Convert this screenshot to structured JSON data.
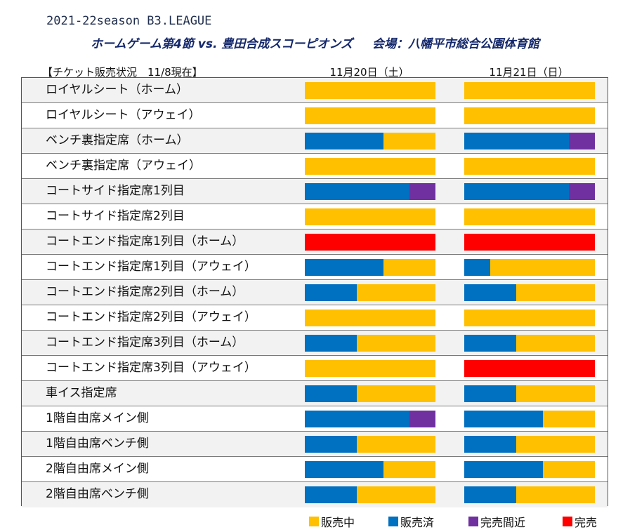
{
  "header": {
    "title": "2021-22season B3.LEAGUE",
    "subtitle_game": "ホームゲーム第4節 vs. 豊田合成スコーピオンズ",
    "subtitle_venue": "会場：八幡平市総合公園体育館",
    "status": "【チケット販売状況　11/8現在】"
  },
  "chart_data": {
    "type": "bar",
    "orientation": "horizontal",
    "stacked": true,
    "normalized": true,
    "dates": [
      "11月20日（土）",
      "11月21日（日）"
    ],
    "legend_position": "bottom",
    "legend": [
      {
        "key": "available",
        "label": "販売中",
        "color": "#ffc000"
      },
      {
        "key": "sold",
        "label": "販売済",
        "color": "#0070c0"
      },
      {
        "key": "almost",
        "label": "完売間近",
        "color": "#7030a0"
      },
      {
        "key": "soldout",
        "label": "完売",
        "color": "#ff0000"
      }
    ],
    "rows": [
      {
        "label": "ロイヤルシート（ホーム）",
        "day1": {
          "soldout": 0,
          "sold": 0,
          "almost": 0
        },
        "day2": {
          "soldout": 0,
          "sold": 0,
          "almost": 0
        }
      },
      {
        "label": "ロイヤルシート（アウェイ）",
        "day1": {
          "soldout": 0,
          "sold": 0,
          "almost": 0
        },
        "day2": {
          "soldout": 0,
          "sold": 0,
          "almost": 0
        }
      },
      {
        "label": "ベンチ裏指定席（ホーム）",
        "day1": {
          "soldout": 0,
          "sold": 0.6,
          "almost": 0
        },
        "day2": {
          "soldout": 0,
          "sold": 0.8,
          "almost": 0.2
        }
      },
      {
        "label": "ベンチ裏指定席（アウェイ）",
        "day1": {
          "soldout": 0,
          "sold": 0,
          "almost": 0
        },
        "day2": {
          "soldout": 0,
          "sold": 0,
          "almost": 0
        }
      },
      {
        "label": "コートサイド指定席1列目",
        "day1": {
          "soldout": 0,
          "sold": 0.8,
          "almost": 0.2
        },
        "day2": {
          "soldout": 0,
          "sold": 0.8,
          "almost": 0.2
        }
      },
      {
        "label": "コートサイド指定席2列目",
        "day1": {
          "soldout": 0,
          "sold": 0,
          "almost": 0
        },
        "day2": {
          "soldout": 0,
          "sold": 0,
          "almost": 0
        }
      },
      {
        "label": "コートエンド指定席1列目（ホーム）",
        "day1": {
          "soldout": 1,
          "sold": 0,
          "almost": 0
        },
        "day2": {
          "soldout": 1,
          "sold": 0,
          "almost": 0
        }
      },
      {
        "label": "コートエンド指定席1列目（アウェイ）",
        "day1": {
          "soldout": 0,
          "sold": 0.6,
          "almost": 0
        },
        "day2": {
          "soldout": 0,
          "sold": 0.2,
          "almost": 0
        }
      },
      {
        "label": "コートエンド指定席2列目（ホーム）",
        "day1": {
          "soldout": 0,
          "sold": 0.4,
          "almost": 0
        },
        "day2": {
          "soldout": 0,
          "sold": 0.4,
          "almost": 0
        }
      },
      {
        "label": "コートエンド指定席2列目（アウェイ）",
        "day1": {
          "soldout": 0,
          "sold": 0,
          "almost": 0
        },
        "day2": {
          "soldout": 0,
          "sold": 0,
          "almost": 0
        }
      },
      {
        "label": "コートエンド指定席3列目（ホーム）",
        "day1": {
          "soldout": 0,
          "sold": 0.4,
          "almost": 0
        },
        "day2": {
          "soldout": 0,
          "sold": 0.4,
          "almost": 0
        }
      },
      {
        "label": "コートエンド指定席3列目（アウェイ）",
        "day1": {
          "soldout": 0,
          "sold": 0,
          "almost": 0
        },
        "day2": {
          "soldout": 1,
          "sold": 0,
          "almost": 0
        }
      },
      {
        "label": "車イス指定席",
        "day1": {
          "soldout": 0,
          "sold": 0.4,
          "almost": 0
        },
        "day2": {
          "soldout": 0,
          "sold": 0.4,
          "almost": 0
        }
      },
      {
        "label": "1階自由席メイン側",
        "day1": {
          "soldout": 0,
          "sold": 0.8,
          "almost": 0.2
        },
        "day2": {
          "soldout": 0,
          "sold": 0.6,
          "almost": 0
        }
      },
      {
        "label": "1階自由席ベンチ側",
        "day1": {
          "soldout": 0,
          "sold": 0.4,
          "almost": 0
        },
        "day2": {
          "soldout": 0,
          "sold": 0.4,
          "almost": 0
        }
      },
      {
        "label": "2階自由席メイン側",
        "day1": {
          "soldout": 0,
          "sold": 0.6,
          "almost": 0
        },
        "day2": {
          "soldout": 0,
          "sold": 0.6,
          "almost": 0
        }
      },
      {
        "label": "2階自由席ベンチ側",
        "day1": {
          "soldout": 0,
          "sold": 0.4,
          "almost": 0
        },
        "day2": {
          "soldout": 0,
          "sold": 0.4,
          "almost": 0
        }
      }
    ]
  }
}
